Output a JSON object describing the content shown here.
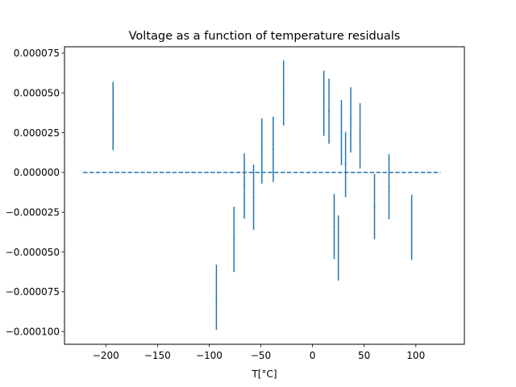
{
  "chart_data": {
    "type": "scatter",
    "title": "Voltage as a function of temperature residuals",
    "xlabel": "T[°C]",
    "ylabel": "",
    "xlim": [
      -240,
      147
    ],
    "ylim": [
      -0.000108,
      7.9e-05
    ],
    "x_ticks": [
      -200,
      -150,
      -100,
      -50,
      0,
      50,
      100
    ],
    "x_tick_labels": [
      "−200",
      "−150",
      "−100",
      "−50",
      "0",
      "50",
      "100"
    ],
    "y_ticks": [
      -0.0001,
      -7.5e-05,
      -5e-05,
      -2.5e-05,
      0,
      2.5e-05,
      5e-05,
      7.5e-05
    ],
    "y_tick_labels": [
      "−0.000100",
      "−0.000075",
      "−0.000050",
      "−0.000025",
      "0.000000",
      "0.000025",
      "0.000050",
      "0.000075"
    ],
    "grid": false,
    "color": "#1f77b4",
    "reference_line": {
      "y": 0,
      "x": [
        -222,
        124
      ],
      "style": "dashed"
    },
    "points": [
      {
        "x": -193,
        "y": 3.55e-05,
        "err": 2.15e-05
      },
      {
        "x": -93,
        "y": -7.85e-05,
        "err": 2.05e-05
      },
      {
        "x": -76,
        "y": -4.2e-05,
        "err": 2.05e-05
      },
      {
        "x": -66,
        "y": -8.5e-06,
        "err": 2.05e-05
      },
      {
        "x": -57,
        "y": -1.55e-05,
        "err": 2.05e-05
      },
      {
        "x": -49,
        "y": 1.35e-05,
        "err": 2.05e-05
      },
      {
        "x": -38,
        "y": 1.45e-05,
        "err": 2.05e-05
      },
      {
        "x": -28,
        "y": 5e-05,
        "err": 2.05e-05
      },
      {
        "x": 11,
        "y": 4.35e-05,
        "err": 2.05e-05
      },
      {
        "x": 16,
        "y": 3.85e-05,
        "err": 2.05e-05
      },
      {
        "x": 21,
        "y": -3.4e-05,
        "err": 2.05e-05
      },
      {
        "x": 25,
        "y": -4.75e-05,
        "err": 2.05e-05
      },
      {
        "x": 28,
        "y": 2.5e-05,
        "err": 2.05e-05
      },
      {
        "x": 32,
        "y": 5e-06,
        "err": 2.05e-05
      },
      {
        "x": 37,
        "y": 3.3e-05,
        "err": 2.05e-05
      },
      {
        "x": 46,
        "y": 2.3e-05,
        "err": 2.05e-05
      },
      {
        "x": 60,
        "y": -2.15e-05,
        "err": 2.05e-05
      },
      {
        "x": 74,
        "y": -9e-06,
        "err": 2.05e-05
      },
      {
        "x": 96,
        "y": -3.45e-05,
        "err": 2.05e-05
      }
    ]
  }
}
